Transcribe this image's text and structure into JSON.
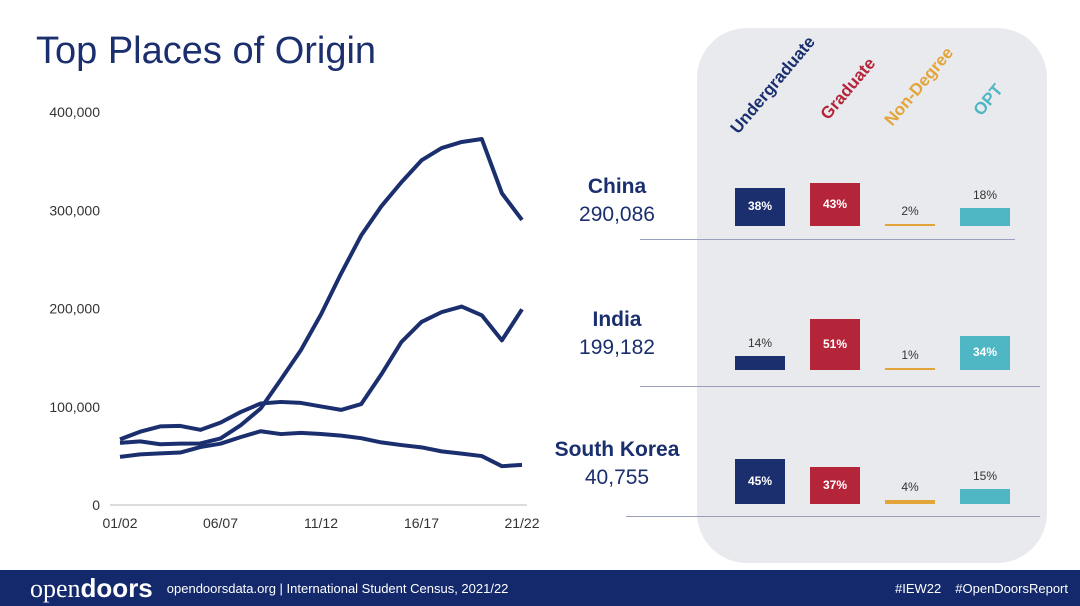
{
  "title": "Top Places of Origin",
  "chart_data": {
    "type": "line",
    "x": [
      "01/02",
      "02/03",
      "03/04",
      "04/05",
      "05/06",
      "06/07",
      "07/08",
      "08/09",
      "09/10",
      "10/11",
      "11/12",
      "12/13",
      "13/14",
      "14/15",
      "15/16",
      "16/17",
      "17/18",
      "18/19",
      "19/20",
      "20/21",
      "21/22"
    ],
    "xticks": [
      "01/02",
      "06/07",
      "11/12",
      "16/17",
      "21/22"
    ],
    "yticks": [
      "0",
      "100,000",
      "200,000",
      "300,000",
      "400,000"
    ],
    "ylim": [
      0,
      400000
    ],
    "series": [
      {
        "name": "China",
        "values": [
          63200,
          64800,
          61800,
          62500,
          62600,
          67700,
          81100,
          98200,
          127600,
          157600,
          194000,
          235600,
          274400,
          304000,
          328500,
          350800,
          363300,
          369500,
          372500,
          317300,
          290100
        ]
      },
      {
        "name": "India",
        "values": [
          66800,
          74600,
          80000,
          80500,
          76500,
          83800,
          94600,
          103300,
          104900,
          103900,
          100300,
          96800,
          102700,
          132900,
          165900,
          186300,
          196300,
          202000,
          193100,
          167600,
          199200
        ]
      },
      {
        "name": "South Korea",
        "values": [
          49000,
          51500,
          52500,
          53400,
          59000,
          62400,
          69100,
          75100,
          72200,
          73400,
          72300,
          70600,
          68000,
          63700,
          61000,
          58700,
          54600,
          52300,
          49800,
          39500,
          40800
        ]
      }
    ],
    "color": "#1b2f6e"
  },
  "categories": [
    {
      "label": "Undergraduate",
      "color": "#1b2f6e"
    },
    {
      "label": "Graduate",
      "color": "#b5253a"
    },
    {
      "label": "Non-Degree",
      "color": "#e3a53a"
    },
    {
      "label": "OPT",
      "color": "#4fb6c4"
    }
  ],
  "countries": [
    {
      "name": "China",
      "total": "290,086",
      "pcts": [
        38,
        43,
        2,
        18
      ],
      "labels": [
        "38%",
        "43%",
        "2%",
        "18%"
      ]
    },
    {
      "name": "India",
      "total": "199,182",
      "pcts": [
        14,
        51,
        1,
        34
      ],
      "labels": [
        "14%",
        "51%",
        "1%",
        "34%"
      ]
    },
    {
      "name": "South Korea",
      "total": "40,755",
      "pcts": [
        45,
        37,
        4,
        15
      ],
      "labels": [
        "45%",
        "37%",
        "4%",
        "15%"
      ]
    }
  ],
  "footer": {
    "logo_thin": "open",
    "logo_bold": "doors",
    "text": "opendoorsdata.org  |  International Student Census, 2021/22",
    "tag1": "#IEW22",
    "tag2": "#OpenDoorsReport"
  }
}
